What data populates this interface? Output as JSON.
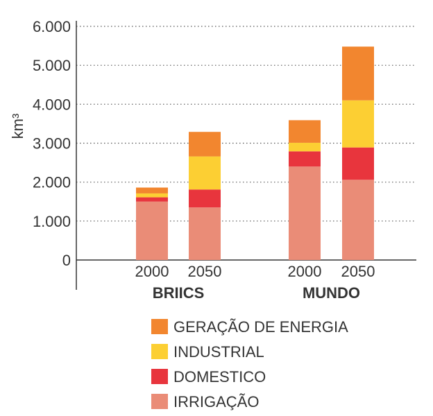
{
  "chart_data": {
    "type": "bar",
    "stacked": true,
    "ylabel": "km³",
    "ylim": [
      0,
      6000
    ],
    "yticks": [
      "0",
      "1.000",
      "2.000",
      "3.000",
      "4.000",
      "5.000",
      "6.000"
    ],
    "ytick_values": [
      0,
      1000,
      2000,
      3000,
      4000,
      5000,
      6000
    ],
    "groups": [
      {
        "label": "BRIICS",
        "categories": [
          "2000",
          "2050"
        ]
      },
      {
        "label": "MUNDO",
        "categories": [
          "2000",
          "2050"
        ]
      }
    ],
    "categories": [
      "2000",
      "2050",
      "2000",
      "2050"
    ],
    "grid": true,
    "legend_position": "bottom",
    "series": [
      {
        "name": "IRRIGAÇÃO",
        "color": "#ea8c77",
        "values": [
          1500,
          1350,
          2400,
          2060
        ]
      },
      {
        "name": "DOMESTICO",
        "color": "#e8353d",
        "values": [
          110,
          460,
          390,
          830
        ]
      },
      {
        "name": "INDUSTRIAL",
        "color": "#fccf33",
        "values": [
          100,
          850,
          220,
          1210
        ]
      },
      {
        "name": "GERAÇÃO DE ENERGIA",
        "color": "#f2862f",
        "values": [
          150,
          630,
          580,
          1380
        ]
      }
    ],
    "legend_order": [
      "GERAÇÃO DE ENERGIA",
      "INDUSTRIAL",
      "DOMESTICO",
      "IRRIGAÇÃO"
    ]
  }
}
